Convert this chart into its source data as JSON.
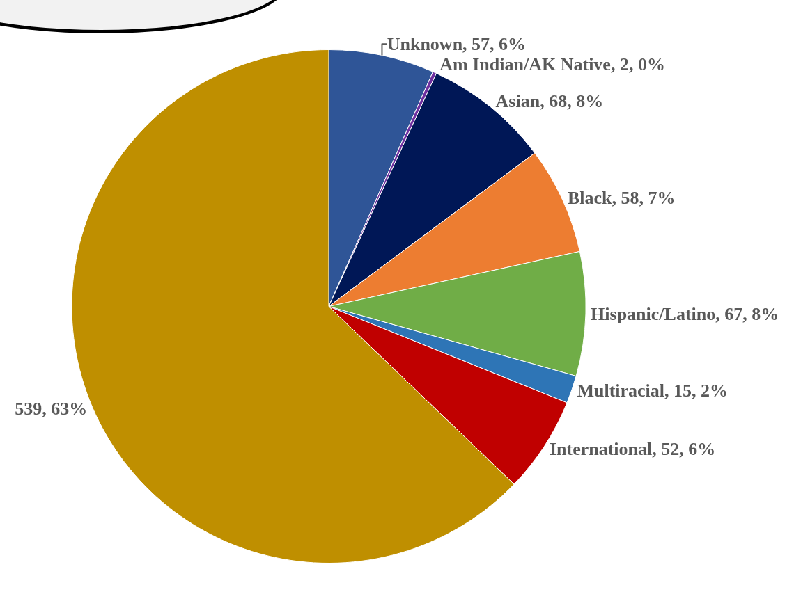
{
  "chart_data": {
    "type": "pie",
    "categories": [
      "Unknown, 57, 6%",
      "Am Indian/AK Native, 2, 0%",
      "Asian, 68, 8%",
      "Black, 58, 7%",
      "Hispanic/Latino, 67, 8%",
      "Multiracial, 15, 2%",
      "International, 52, 6%",
      "539, 63%"
    ],
    "values": [
      57,
      2,
      68,
      58,
      67,
      15,
      52,
      539
    ],
    "colors": [
      "#2f5597",
      "#7030a0",
      "#001756",
      "#ed7d31",
      "#70ad47",
      "#2e75b6",
      "#c00000",
      "#bf8f00"
    ],
    "legend": false
  }
}
